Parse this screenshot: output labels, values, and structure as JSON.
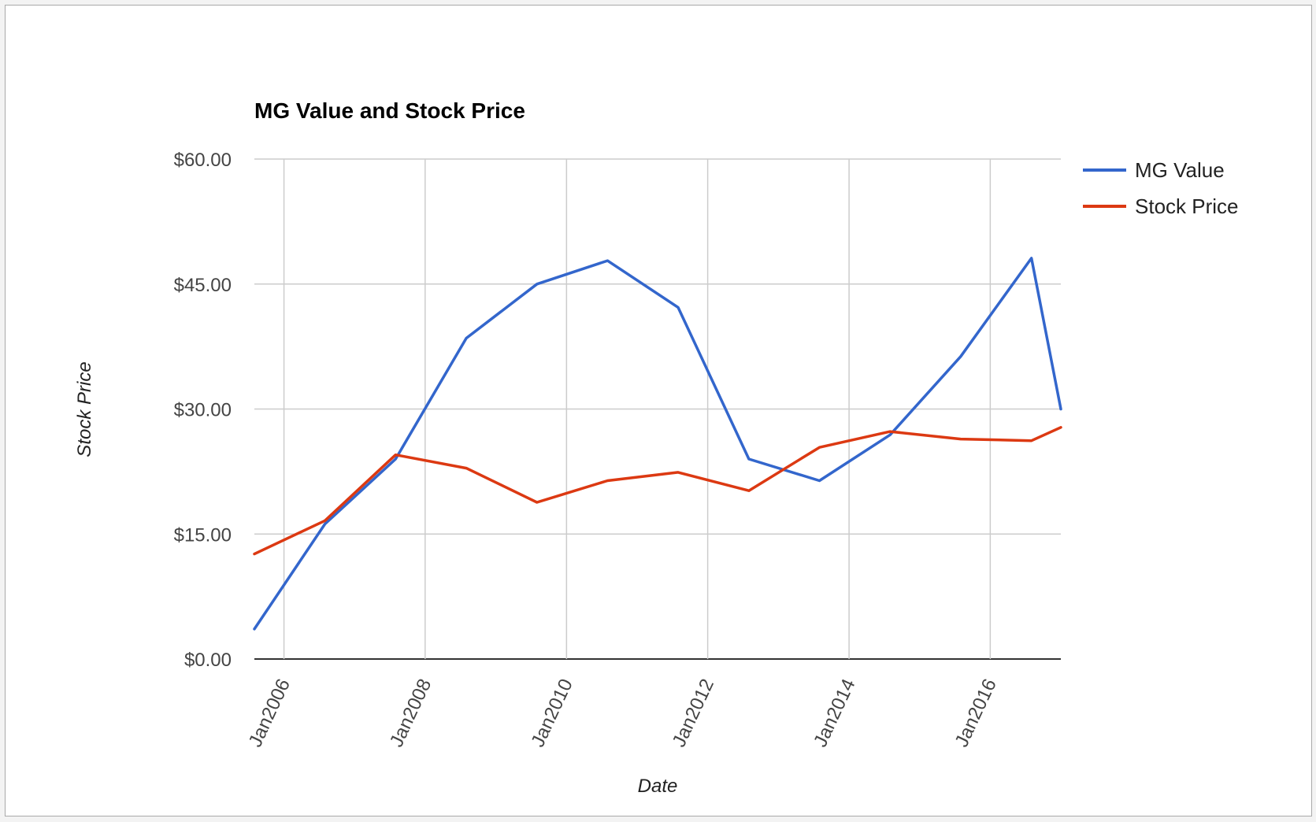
{
  "chart_data": {
    "type": "line",
    "title": "MG Value and Stock Price",
    "xlabel": "Date",
    "ylabel": "Stock Price",
    "legend_position": "right",
    "grid": true,
    "x_ticks": [
      "Jan2006",
      "Jan2008",
      "Jan2010",
      "Jan2012",
      "Jan2014",
      "Jan2016"
    ],
    "x_range": [
      "2005-08-01",
      "2016-12-31"
    ],
    "y_ticks": [
      "$0.00",
      "$15.00",
      "$30.00",
      "$45.00",
      "$60.00"
    ],
    "ylim": [
      0,
      60
    ],
    "x": [
      "2005-08-01",
      "2006-08-01",
      "2007-08-01",
      "2008-08-01",
      "2009-08-01",
      "2010-08-01",
      "2011-08-01",
      "2012-08-01",
      "2013-08-01",
      "2014-08-01",
      "2015-08-01",
      "2016-08-01",
      "2016-12-31"
    ],
    "series": [
      {
        "name": "MG Value",
        "color": "#3366cc",
        "values": [
          3.6,
          16.2,
          24.0,
          38.5,
          45.0,
          47.8,
          42.2,
          24.0,
          21.4,
          26.9,
          36.3,
          48.1,
          30.0
        ]
      },
      {
        "name": "Stock Price",
        "color": "#dc3912",
        "values": [
          12.6,
          16.6,
          24.5,
          22.9,
          18.8,
          21.4,
          22.4,
          20.2,
          25.4,
          27.3,
          26.4,
          26.2,
          27.8
        ]
      }
    ]
  }
}
